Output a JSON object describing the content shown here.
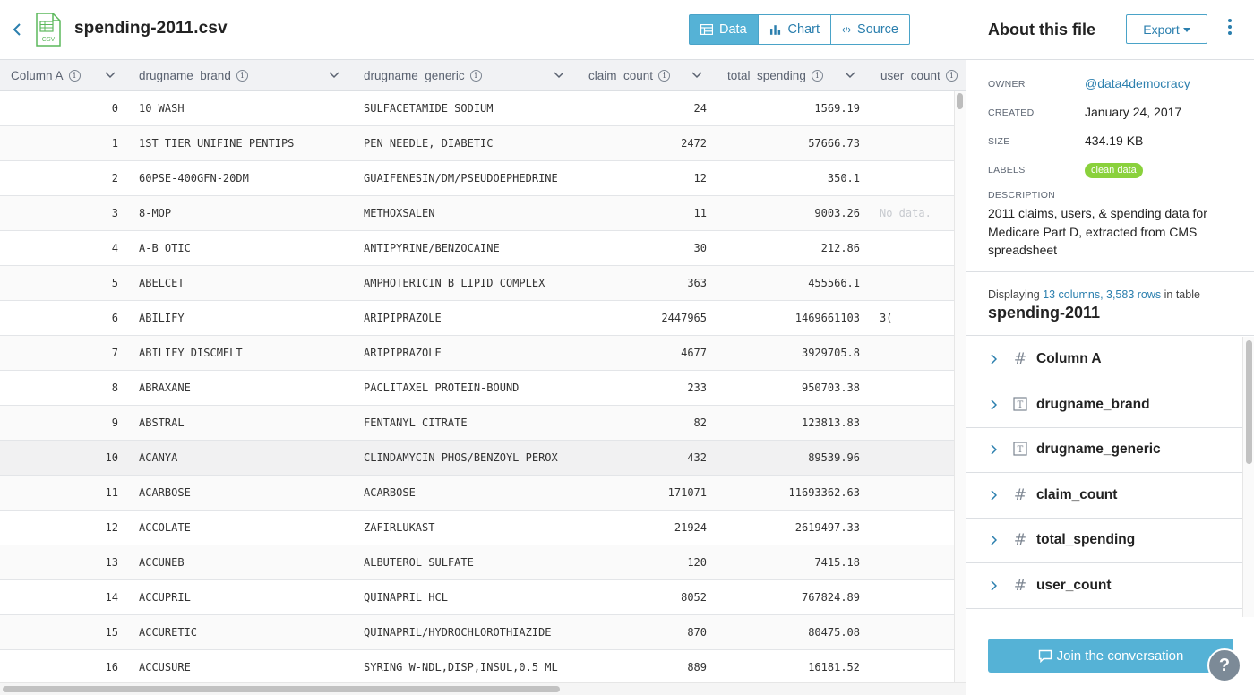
{
  "file": {
    "title": "spending-2011.csv",
    "icon": "csv-file-icon",
    "icon_label": "CSV"
  },
  "view_tabs": [
    {
      "label": "Data",
      "icon": "table-icon",
      "active": true
    },
    {
      "label": "Chart",
      "icon": "bar-chart-icon",
      "active": false
    },
    {
      "label": "Source",
      "icon": "code-icon",
      "active": false
    }
  ],
  "table": {
    "columns": [
      "Column A",
      "drugname_brand",
      "drugname_generic",
      "claim_count",
      "total_spending",
      "user_count"
    ],
    "rows": [
      {
        "idx": "0",
        "brand": "10 WASH",
        "generic": "SULFACETAMIDE SODIUM",
        "claim": "24",
        "spend": "1569.19",
        "users": ""
      },
      {
        "idx": "1",
        "brand": "1ST TIER UNIFINE PENTIPS",
        "generic": "PEN NEEDLE, DIABETIC",
        "claim": "2472",
        "spend": "57666.73",
        "users": ""
      },
      {
        "idx": "2",
        "brand": "60PSE-400GFN-20DM",
        "generic": "GUAIFENESIN/DM/PSEUDOEPHEDRINE",
        "claim": "12",
        "spend": "350.1",
        "users": ""
      },
      {
        "idx": "3",
        "brand": "8-MOP",
        "generic": "METHOXSALEN",
        "claim": "11",
        "spend": "9003.26",
        "users": "No data."
      },
      {
        "idx": "4",
        "brand": "A-B OTIC",
        "generic": "ANTIPYRINE/BENZOCAINE",
        "claim": "30",
        "spend": "212.86",
        "users": ""
      },
      {
        "idx": "5",
        "brand": "ABELCET",
        "generic": "AMPHOTERICIN B LIPID COMPLEX",
        "claim": "363",
        "spend": "455566.1",
        "users": ""
      },
      {
        "idx": "6",
        "brand": "ABILIFY",
        "generic": "ARIPIPRAZOLE",
        "claim": "2447965",
        "spend": "1469661103",
        "users": "3("
      },
      {
        "idx": "7",
        "brand": "ABILIFY DISCMELT",
        "generic": "ARIPIPRAZOLE",
        "claim": "4677",
        "spend": "3929705.8",
        "users": ""
      },
      {
        "idx": "8",
        "brand": "ABRAXANE",
        "generic": "PACLITAXEL PROTEIN-BOUND",
        "claim": "233",
        "spend": "950703.38",
        "users": ""
      },
      {
        "idx": "9",
        "brand": "ABSTRAL",
        "generic": "FENTANYL CITRATE",
        "claim": "82",
        "spend": "123813.83",
        "users": ""
      },
      {
        "idx": "10",
        "brand": "ACANYA",
        "generic": "CLINDAMYCIN PHOS/BENZOYL PEROX",
        "claim": "432",
        "spend": "89539.96",
        "users": ""
      },
      {
        "idx": "11",
        "brand": "ACARBOSE",
        "generic": "ACARBOSE",
        "claim": "171071",
        "spend": "11693362.63",
        "users": ""
      },
      {
        "idx": "12",
        "brand": "ACCOLATE",
        "generic": "ZAFIRLUKAST",
        "claim": "21924",
        "spend": "2619497.33",
        "users": ""
      },
      {
        "idx": "13",
        "brand": "ACCUNEB",
        "generic": "ALBUTEROL SULFATE",
        "claim": "120",
        "spend": "7415.18",
        "users": ""
      },
      {
        "idx": "14",
        "brand": "ACCUPRIL",
        "generic": "QUINAPRIL HCL",
        "claim": "8052",
        "spend": "767824.89",
        "users": ""
      },
      {
        "idx": "15",
        "brand": "ACCURETIC",
        "generic": "QUINAPRIL/HYDROCHLOROTHIAZIDE",
        "claim": "870",
        "spend": "80475.08",
        "users": ""
      },
      {
        "idx": "16",
        "brand": "ACCUSURE",
        "generic": "SYRING W-NDL,DISP,INSUL,0.5 ML",
        "claim": "889",
        "spend": "16181.52",
        "users": ""
      }
    ]
  },
  "sidebar": {
    "title": "About this file",
    "export_label": "Export",
    "meta": {
      "owner_label": "OWNER",
      "owner_value": "@data4democracy",
      "created_label": "CREATED",
      "created_value": "January 24, 2017",
      "size_label": "SIZE",
      "size_value": "434.19 KB",
      "labels_label": "LABELS",
      "label_badge": "clean data",
      "description_label": "DESCRIPTION",
      "description_value": "2011 claims, users, & spending data for Medicare Part D, extracted from CMS spreadsheet"
    },
    "display": {
      "prefix": "Displaying ",
      "highlight": "13 columns, 3,583 rows",
      "suffix": " in table",
      "table_name": "spending-2011"
    },
    "column_list": [
      {
        "name": "Column A",
        "type": "number"
      },
      {
        "name": "drugname_brand",
        "type": "text"
      },
      {
        "name": "drugname_generic",
        "type": "text"
      },
      {
        "name": "claim_count",
        "type": "number"
      },
      {
        "name": "total_spending",
        "type": "number"
      },
      {
        "name": "user_count",
        "type": "number"
      }
    ],
    "join_label": "Join the conversation",
    "help_label": "?"
  },
  "colors": {
    "accent": "#55b2d6",
    "link": "#2b7fae",
    "badge": "#8ad13c"
  }
}
